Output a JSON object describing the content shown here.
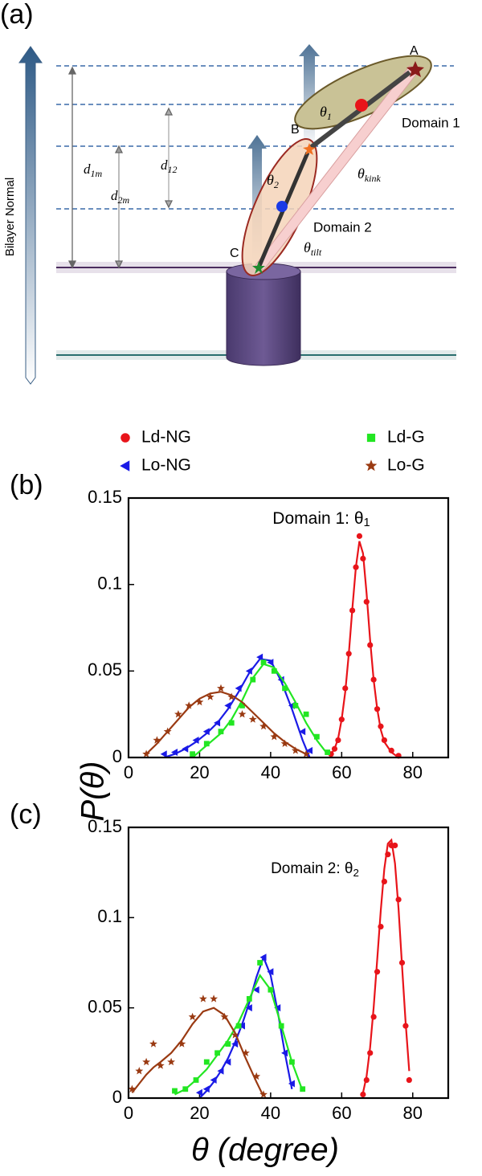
{
  "diagram": {
    "panel_label": "(a)",
    "axis_label": "Bilayer Normal",
    "points": [
      "A",
      "B",
      "C"
    ],
    "domains": [
      "Domain 1",
      "Domain 2"
    ],
    "distances": [
      {
        "base": "d",
        "sub": "1m"
      },
      {
        "base": "d",
        "sub": "2m"
      },
      {
        "base": "d",
        "sub": "12"
      }
    ],
    "angles": [
      {
        "base": "θ",
        "sub": "1"
      },
      {
        "base": "θ",
        "sub": "2"
      },
      {
        "base": "θ",
        "sub": "kink"
      },
      {
        "base": "θ",
        "sub": "tilt"
      }
    ]
  },
  "chart_data": [
    {
      "type": "scatter",
      "panel_label": "(b)",
      "title": {
        "text": "Domain 1: θ",
        "sub": "1"
      },
      "ylabel": "P(θ)",
      "xlim": [
        0,
        90
      ],
      "xticks": [
        0,
        20,
        40,
        60,
        80
      ],
      "ylim": [
        0,
        0.15
      ],
      "yticks": [
        0,
        0.05,
        0.1,
        0.15
      ],
      "series": [
        {
          "name": "Ld-NG",
          "color": "#e8141a",
          "marker": "circle",
          "x": [
            57,
            58,
            59,
            60,
            61,
            62,
            63,
            64,
            65,
            66,
            67,
            68,
            69,
            70,
            71,
            72,
            74,
            76
          ],
          "values": [
            0.002,
            0.005,
            0.01,
            0.022,
            0.04,
            0.06,
            0.085,
            0.11,
            0.128,
            0.115,
            0.09,
            0.065,
            0.045,
            0.028,
            0.018,
            0.01,
            0.004,
            0.001
          ],
          "fit": [
            0.002,
            0.005,
            0.011,
            0.022,
            0.038,
            0.06,
            0.086,
            0.11,
            0.125,
            0.118,
            0.095,
            0.068,
            0.045,
            0.028,
            0.016,
            0.009,
            0.003,
            0
          ]
        },
        {
          "name": "Lo-NG",
          "color": "#1a1ae6",
          "marker": "triangle",
          "x": [
            10,
            13,
            16,
            19,
            22,
            25,
            28,
            31,
            34,
            37,
            40,
            43,
            46,
            49,
            51
          ],
          "values": [
            0.002,
            0.003,
            0.005,
            0.01,
            0.015,
            0.02,
            0.03,
            0.04,
            0.05,
            0.058,
            0.055,
            0.045,
            0.03,
            0.015,
            0.004
          ],
          "fit": [
            0,
            0.002,
            0.005,
            0.009,
            0.014,
            0.02,
            0.028,
            0.038,
            0.049,
            0.057,
            0.056,
            0.044,
            0.028,
            0.01,
            0
          ]
        },
        {
          "name": "Ld-G",
          "color": "#22e622",
          "marker": "square",
          "x": [
            18,
            22,
            26,
            29,
            32,
            35,
            38,
            41,
            44,
            47,
            50,
            53,
            56
          ],
          "values": [
            0.002,
            0.008,
            0.015,
            0.02,
            0.03,
            0.045,
            0.055,
            0.05,
            0.04,
            0.03,
            0.025,
            0.012,
            0.003
          ],
          "fit": [
            0,
            0.007,
            0.014,
            0.022,
            0.033,
            0.046,
            0.054,
            0.052,
            0.043,
            0.032,
            0.02,
            0.01,
            0.002
          ]
        },
        {
          "name": "Lo-G",
          "color": "#9a3a12",
          "marker": "star",
          "x": [
            5,
            8,
            11,
            14,
            17,
            20,
            23,
            26,
            29,
            32,
            35,
            38,
            41,
            44,
            47,
            50
          ],
          "values": [
            0.002,
            0.01,
            0.015,
            0.025,
            0.03,
            0.032,
            0.035,
            0.04,
            0.035,
            0.025,
            0.022,
            0.018,
            0.012,
            0.008,
            0.004,
            0.002
          ],
          "fit": [
            0.002,
            0.008,
            0.015,
            0.022,
            0.029,
            0.034,
            0.037,
            0.038,
            0.036,
            0.032,
            0.026,
            0.02,
            0.014,
            0.009,
            0.005,
            0.002
          ]
        }
      ]
    },
    {
      "type": "scatter",
      "panel_label": "(c)",
      "title": {
        "text": "Domain 2: θ",
        "sub": "2"
      },
      "xlabel": "θ (degree)",
      "xlim": [
        0,
        90
      ],
      "xticks": [
        0,
        20,
        40,
        60,
        80
      ],
      "ylim": [
        0,
        0.15
      ],
      "yticks": [
        0,
        0.05,
        0.1,
        0.15
      ],
      "series": [
        {
          "color": "#e8141a",
          "marker": "circle",
          "x": [
            66,
            67,
            68,
            69,
            70,
            71,
            72,
            73,
            74,
            75,
            76,
            77,
            78,
            79
          ],
          "values": [
            0.002,
            0.01,
            0.025,
            0.045,
            0.07,
            0.095,
            0.12,
            0.135,
            0.14,
            0.14,
            0.11,
            0.075,
            0.04,
            0.01
          ],
          "fit": [
            0.003,
            0.012,
            0.028,
            0.05,
            0.077,
            0.104,
            0.127,
            0.141,
            0.143,
            0.13,
            0.105,
            0.073,
            0.042,
            0.015
          ]
        },
        {
          "color": "#1a1ae6",
          "marker": "triangle",
          "x": [
            20,
            22,
            24,
            26,
            28,
            30,
            32,
            34,
            36,
            38,
            40,
            42,
            44,
            46
          ],
          "values": [
            0.003,
            0.005,
            0.01,
            0.015,
            0.02,
            0.03,
            0.04,
            0.05,
            0.06,
            0.078,
            0.07,
            0.05,
            0.025,
            0.008
          ],
          "fit": [
            0,
            0.004,
            0.009,
            0.015,
            0.022,
            0.031,
            0.041,
            0.053,
            0.067,
            0.078,
            0.068,
            0.048,
            0.025,
            0.005
          ]
        },
        {
          "color": "#22e622",
          "marker": "square",
          "x": [
            13,
            16,
            19,
            22,
            25,
            28,
            31,
            34,
            37,
            40,
            43,
            46,
            49
          ],
          "values": [
            0.004,
            0.005,
            0.01,
            0.02,
            0.025,
            0.03,
            0.04,
            0.055,
            0.075,
            0.06,
            0.04,
            0.02,
            0.005
          ],
          "fit": [
            0.002,
            0.005,
            0.01,
            0.016,
            0.024,
            0.032,
            0.042,
            0.055,
            0.068,
            0.06,
            0.04,
            0.02,
            0.004
          ]
        },
        {
          "color": "#9a3a12",
          "marker": "star",
          "x": [
            1,
            3,
            5,
            7,
            9,
            12,
            15,
            18,
            21,
            24,
            27,
            30,
            33,
            36,
            38
          ],
          "values": [
            0.005,
            0.015,
            0.02,
            0.03,
            0.018,
            0.02,
            0.03,
            0.045,
            0.055,
            0.055,
            0.045,
            0.035,
            0.025,
            0.012,
            0.002
          ],
          "fit": [
            0.003,
            0.008,
            0.013,
            0.017,
            0.02,
            0.025,
            0.032,
            0.041,
            0.048,
            0.05,
            0.046,
            0.036,
            0.022,
            0.009,
            0.001
          ]
        }
      ]
    }
  ]
}
